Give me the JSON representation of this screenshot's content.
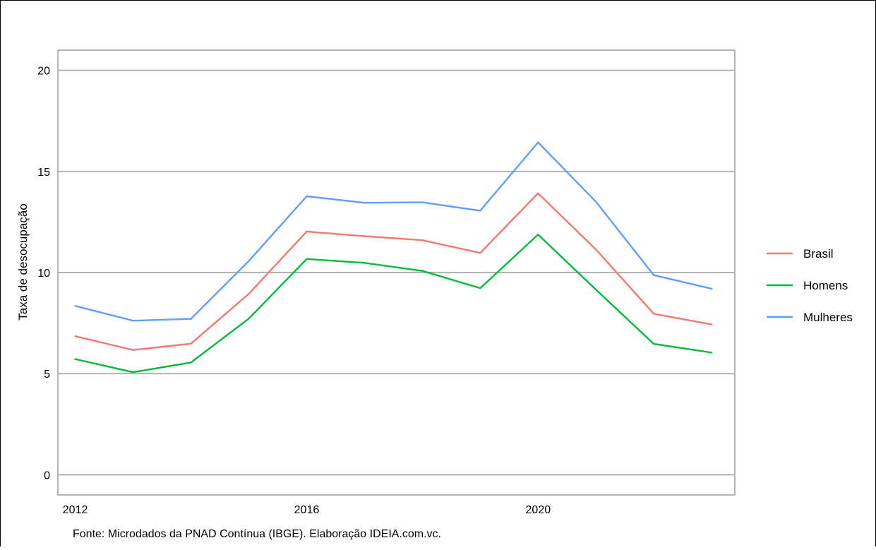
{
  "chart_data": {
    "type": "line",
    "title": "",
    "xlabel": "",
    "ylabel": "Taxa de desocupação",
    "caption": "Fonte: Microdados da PNAD Contínua (IBGE). Elaboração IDEIA.com.vc.",
    "x": [
      2012,
      2013,
      2014,
      2015,
      2016,
      2017,
      2018,
      2019,
      2020,
      2021,
      2022,
      2023
    ],
    "xlim": [
      2011.7,
      2023.4
    ],
    "ylim": [
      -1,
      21
    ],
    "x_ticks": [
      2012,
      2016,
      2020
    ],
    "y_ticks": [
      0,
      5,
      10,
      15,
      20
    ],
    "grid": "horizontal",
    "legend_position": "right",
    "series": [
      {
        "name": "Brasil",
        "color": "#f8766d",
        "values": [
          6.85,
          6.17,
          6.48,
          8.95,
          12.03,
          11.8,
          11.6,
          10.97,
          13.92,
          11.14,
          7.96,
          7.43
        ]
      },
      {
        "name": "Homens",
        "color": "#00ba38",
        "values": [
          5.72,
          5.07,
          5.55,
          7.72,
          10.67,
          10.48,
          10.08,
          9.23,
          11.88,
          9.15,
          6.47,
          6.04
        ]
      },
      {
        "name": "Mulheres",
        "color": "#619cff",
        "values": [
          8.35,
          7.62,
          7.71,
          10.57,
          13.77,
          13.45,
          13.47,
          13.06,
          16.44,
          13.5,
          9.87,
          9.2
        ]
      }
    ]
  }
}
